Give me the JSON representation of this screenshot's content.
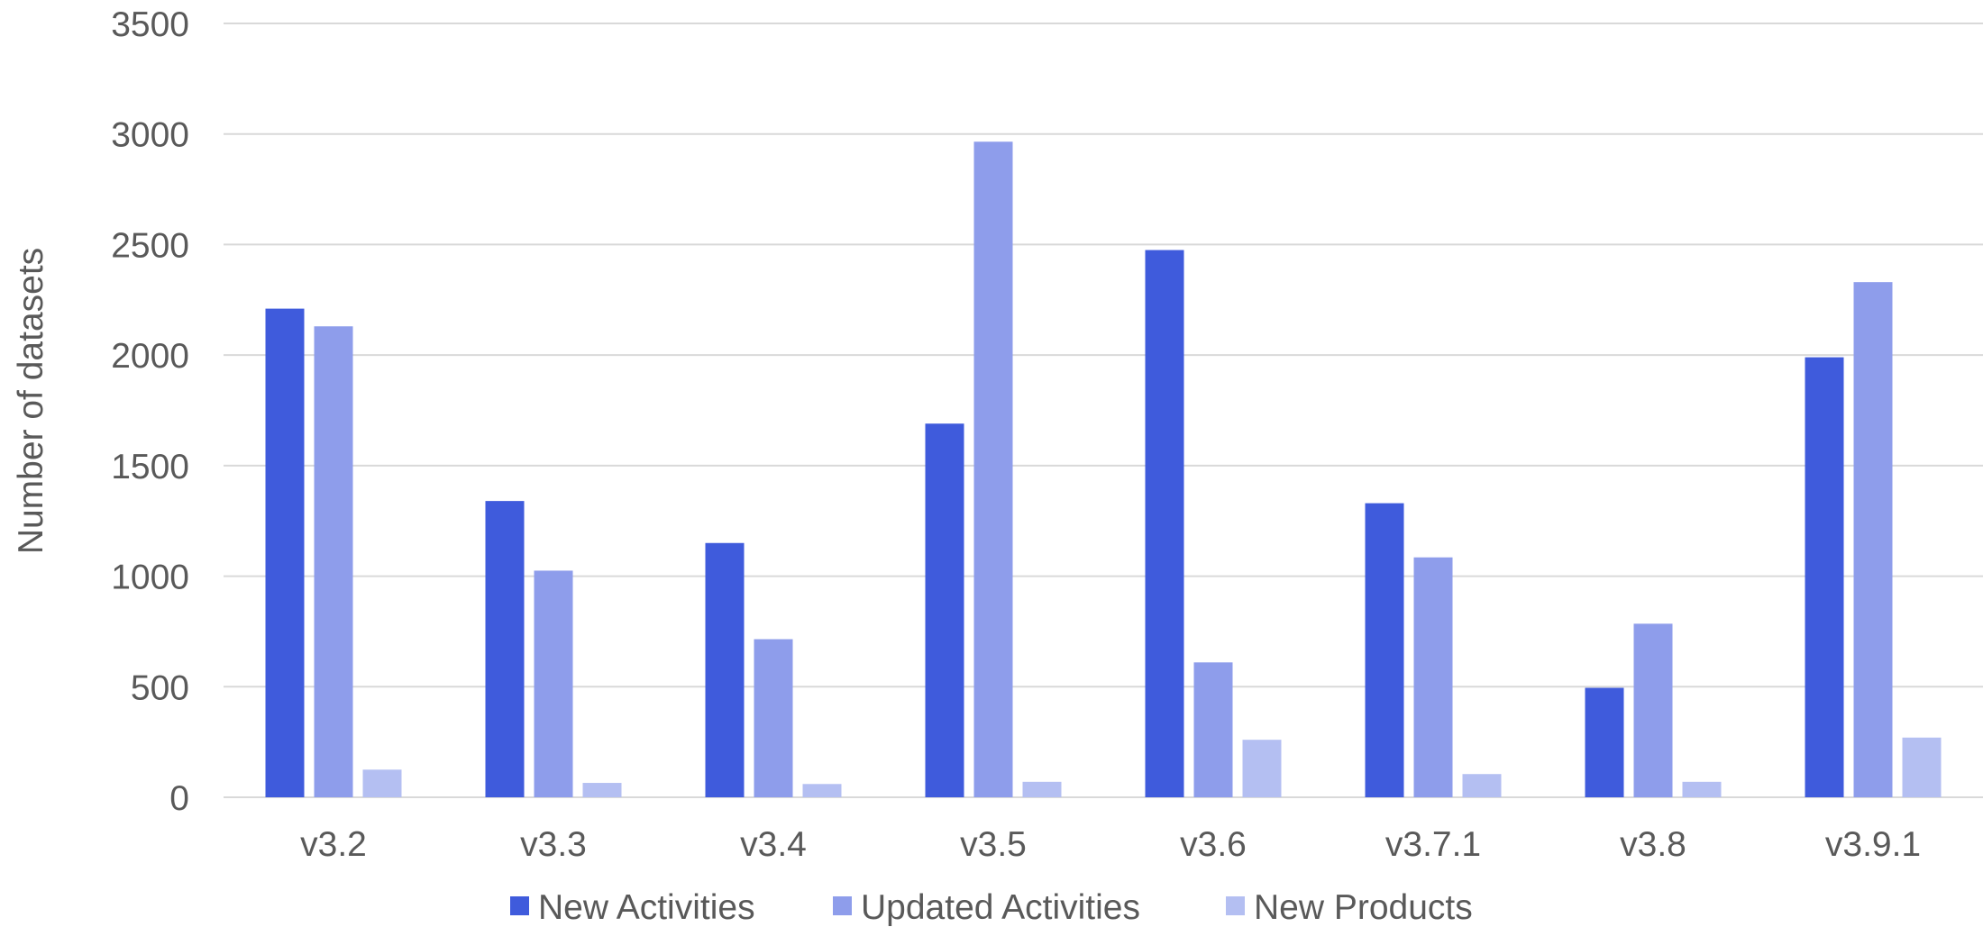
{
  "chart_data": {
    "type": "bar",
    "categories": [
      "v3.2",
      "v3.3",
      "v3.4",
      "v3.5",
      "v3.6",
      "v3.7.1",
      "v3.8",
      "v3.9.1"
    ],
    "series": [
      {
        "name": "New Activities",
        "color": "#3f5bdc",
        "values": [
          2210,
          1340,
          1150,
          1690,
          2475,
          1330,
          495,
          1990
        ]
      },
      {
        "name": "Updated Activities",
        "color": "#8e9deb",
        "values": [
          2130,
          1025,
          715,
          2965,
          610,
          1085,
          785,
          2330
        ]
      },
      {
        "name": "New Products",
        "color": "#b4bff2",
        "values": [
          125,
          65,
          60,
          70,
          260,
          105,
          70,
          270
        ]
      }
    ],
    "title": "",
    "xlabel": "",
    "ylabel": "Number of datasets",
    "ylim": [
      0,
      3500
    ],
    "yticks": [
      "0",
      "500",
      "1000",
      "1500",
      "2000",
      "2500",
      "3000",
      "3500"
    ],
    "grid": true,
    "legend_position": "bottom"
  }
}
